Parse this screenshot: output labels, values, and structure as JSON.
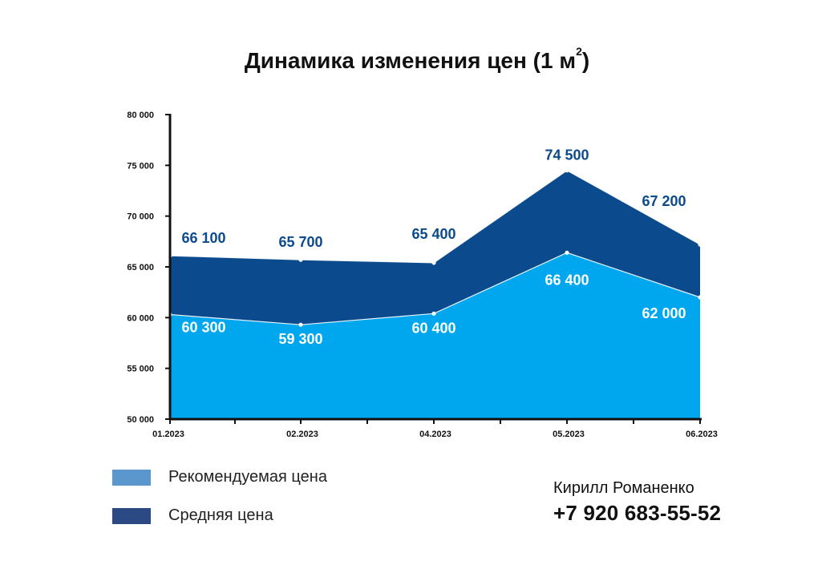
{
  "chart_data": {
    "type": "area",
    "title": "Динамика изменения цен (1 м",
    "title_sup": "2",
    "title_close": ")",
    "categories": [
      "01.2023",
      "02.2023",
      "04.2023",
      "05.2023",
      "06.2023"
    ],
    "series": [
      {
        "name": "Средняя цена",
        "values": [
          66100,
          65700,
          65400,
          74500,
          67200
        ],
        "color": "#0b4a8c",
        "labels": [
          "66 100",
          "65 700",
          "65 400",
          "74 500",
          "67 200"
        ],
        "label_color": "#0b4a8c"
      },
      {
        "name": "Рекомендуемая цена",
        "values": [
          60300,
          59300,
          60400,
          66400,
          62000
        ],
        "color": "#00a6ee",
        "labels": [
          "60 300",
          "59 300",
          "60 400",
          "66 400",
          "62 000"
        ],
        "label_color": "#ffffff"
      }
    ],
    "ylim": [
      50000,
      80000
    ],
    "yticks": [
      50000,
      55000,
      60000,
      65000,
      70000,
      75000,
      80000
    ],
    "ytick_labels": [
      "50 000",
      "55 000",
      "60 000",
      "65 000",
      "70 000",
      "75 000",
      "80 000"
    ],
    "grid": false,
    "legend_position": "bottom-left"
  },
  "legend": [
    {
      "label": "Рекомендуемая цена",
      "color": "#5b97cc"
    },
    {
      "label": "Средняя цена",
      "color": "#2b4a83"
    }
  ],
  "contact": {
    "name": "Кирилл Романенко",
    "phone": "+7 920 683-55-52"
  }
}
